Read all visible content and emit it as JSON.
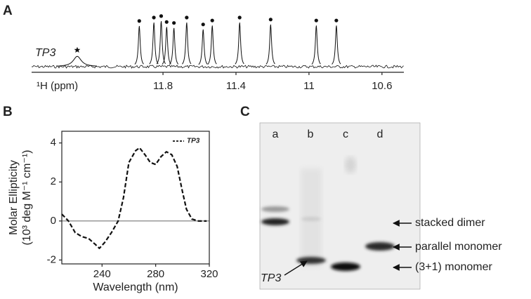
{
  "panels": [
    "A",
    "B",
    "C"
  ],
  "chart_data": [
    {
      "type": "spectrum",
      "sample_label": "TP3",
      "x_label": "¹H (ppm)",
      "peaks": [
        11.93,
        11.85,
        11.81,
        11.78,
        11.74,
        11.67,
        11.58,
        11.53,
        11.38,
        11.21,
        10.96,
        10.85
      ],
      "intensities": [
        0.83,
        0.9,
        0.93,
        0.81,
        0.79,
        0.9,
        0.76,
        0.84,
        0.9,
        0.86,
        0.84,
        0.84
      ],
      "reference_peak": {
        "x": 12.27,
        "intensity": 0.21
      },
      "xlim": [
        12.52,
        10.48
      ],
      "xticks": [
        11.8,
        11.4,
        11.0,
        10.6
      ],
      "ylim": [
        0,
        1
      ],
      "color": "#111"
    },
    {
      "type": "line",
      "x_label": "Wavelength (nm)",
      "y_label": [
        "Molar Ellipticity",
        "(10³ deg M⁻¹ cm⁻¹)"
      ],
      "x": [
        210,
        215,
        220,
        225,
        230,
        235,
        238,
        242,
        247,
        252,
        256,
        260,
        265,
        268,
        272,
        276,
        280,
        284,
        288,
        292,
        296,
        300,
        303,
        307,
        312,
        318
      ],
      "series": [
        {
          "name": "TP3",
          "color": "#111",
          "values": [
            0.35,
            0.0,
            -0.6,
            -0.8,
            -0.9,
            -1.2,
            -1.4,
            -1.1,
            -0.6,
            0.0,
            1.2,
            3.0,
            3.6,
            3.75,
            3.4,
            3.0,
            2.9,
            3.3,
            3.55,
            3.4,
            2.8,
            1.5,
            0.6,
            0.1,
            0.0,
            0.0
          ]
        }
      ],
      "xlim": [
        210,
        320
      ],
      "xticks": [
        240,
        280,
        320
      ],
      "ylim": [
        -2.2,
        4.6
      ],
      "yticks": [
        -2,
        0,
        2,
        4
      ],
      "legend": "top-right"
    }
  ],
  "gel": {
    "lanes": [
      "a",
      "b",
      "c",
      "d"
    ],
    "bands": [
      "stacked dimer",
      "parallel monomer",
      "(3+1) monomer"
    ],
    "sample_label": "TP3"
  }
}
